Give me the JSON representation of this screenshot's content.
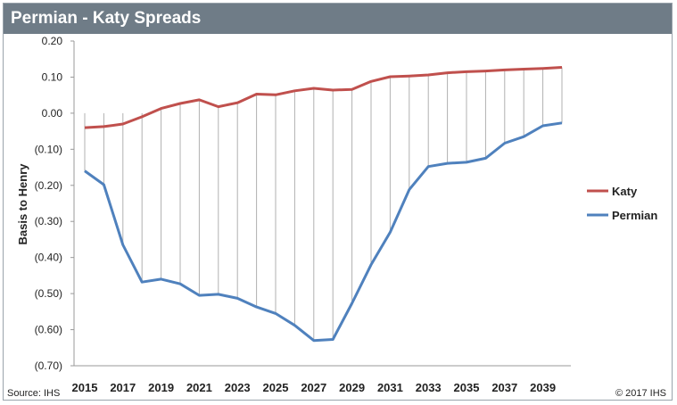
{
  "title": "Permian - Katy Spreads",
  "source": "Source: IHS",
  "copyright": "© 2017 IHS",
  "chart_data": {
    "type": "line",
    "title": "Permian - Katy Spreads",
    "xlabel": "",
    "ylabel": "Basis to Henry",
    "ylim": [
      -0.7,
      0.2
    ],
    "ytick_step": 0.1,
    "yticks_labels": [
      "0.20",
      "0.10",
      "0.00",
      "(0.10)",
      "(0.20)",
      "(0.30)",
      "(0.40)",
      "(0.50)",
      "(0.60)",
      "(0.70)"
    ],
    "x": [
      2015,
      2016,
      2017,
      2018,
      2019,
      2020,
      2021,
      2022,
      2023,
      2024,
      2025,
      2026,
      2027,
      2028,
      2029,
      2030,
      2031,
      2032,
      2033,
      2034,
      2035,
      2036,
      2037,
      2038,
      2039,
      2040
    ],
    "xtick_labels": [
      "2015",
      "2017",
      "2019",
      "2021",
      "2023",
      "2025",
      "2027",
      "2029",
      "2031",
      "2033",
      "2035",
      "2037",
      "2039"
    ],
    "grid": "vertical drop lines between series",
    "legend_position": "right",
    "series": [
      {
        "name": "Katy",
        "color": "#c0504d",
        "values": [
          -0.04,
          -0.037,
          -0.03,
          -0.01,
          0.013,
          0.027,
          0.037,
          0.018,
          0.029,
          0.053,
          0.051,
          0.062,
          0.069,
          0.064,
          0.066,
          0.088,
          0.101,
          0.103,
          0.106,
          0.112,
          0.115,
          0.117,
          0.12,
          0.122,
          0.124,
          0.127
        ]
      },
      {
        "name": "Permian",
        "color": "#4f81bd",
        "values": [
          -0.16,
          -0.198,
          -0.365,
          -0.468,
          -0.46,
          -0.473,
          -0.505,
          -0.502,
          -0.513,
          -0.537,
          -0.555,
          -0.588,
          -0.63,
          -0.627,
          -0.527,
          -0.42,
          -0.33,
          -0.212,
          -0.148,
          -0.139,
          -0.136,
          -0.125,
          -0.083,
          -0.065,
          -0.035,
          -0.027
        ]
      }
    ]
  }
}
